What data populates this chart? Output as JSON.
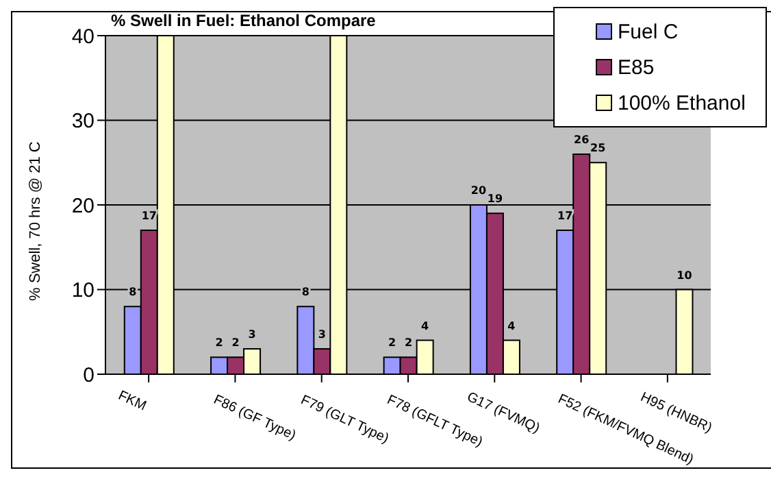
{
  "chart_data": {
    "type": "bar",
    "title": "% Swell in Fuel: Ethanol Compare",
    "ylabel": "% Swell, 70 hrs @ 21 C",
    "categories": [
      "FKM",
      "F86 (GF Type)",
      "F79 (GLT Type)",
      "F78 (GFLT Type)",
      "G17 (FVMQ)",
      "F52 (FKM/FVMQ Blend)",
      "H95 (HNBR)"
    ],
    "series": [
      {
        "name": "Fuel C",
        "color": "#9999ff",
        "values": [
          8,
          2,
          8,
          2,
          20,
          17,
          null
        ],
        "value_labels": [
          "8",
          "2",
          "8",
          "2",
          "20",
          "17",
          null
        ]
      },
      {
        "name": "E85",
        "color": "#993366",
        "values": [
          17,
          2,
          3,
          2,
          19,
          26,
          null
        ],
        "value_labels": [
          "17",
          "2",
          "3",
          "2",
          "19",
          "26",
          null
        ]
      },
      {
        "name": "100% Ethanol",
        "color": "#ffffcc",
        "values": [
          40,
          3,
          40,
          4,
          4,
          25,
          10
        ],
        "value_labels": [
          null,
          "3",
          null,
          "4",
          "4",
          "25",
          "10"
        ]
      }
    ],
    "ylim": [
      0,
      40
    ],
    "yticks": [
      0,
      10,
      20,
      30,
      40
    ],
    "grid": "y",
    "legend": "top right"
  }
}
